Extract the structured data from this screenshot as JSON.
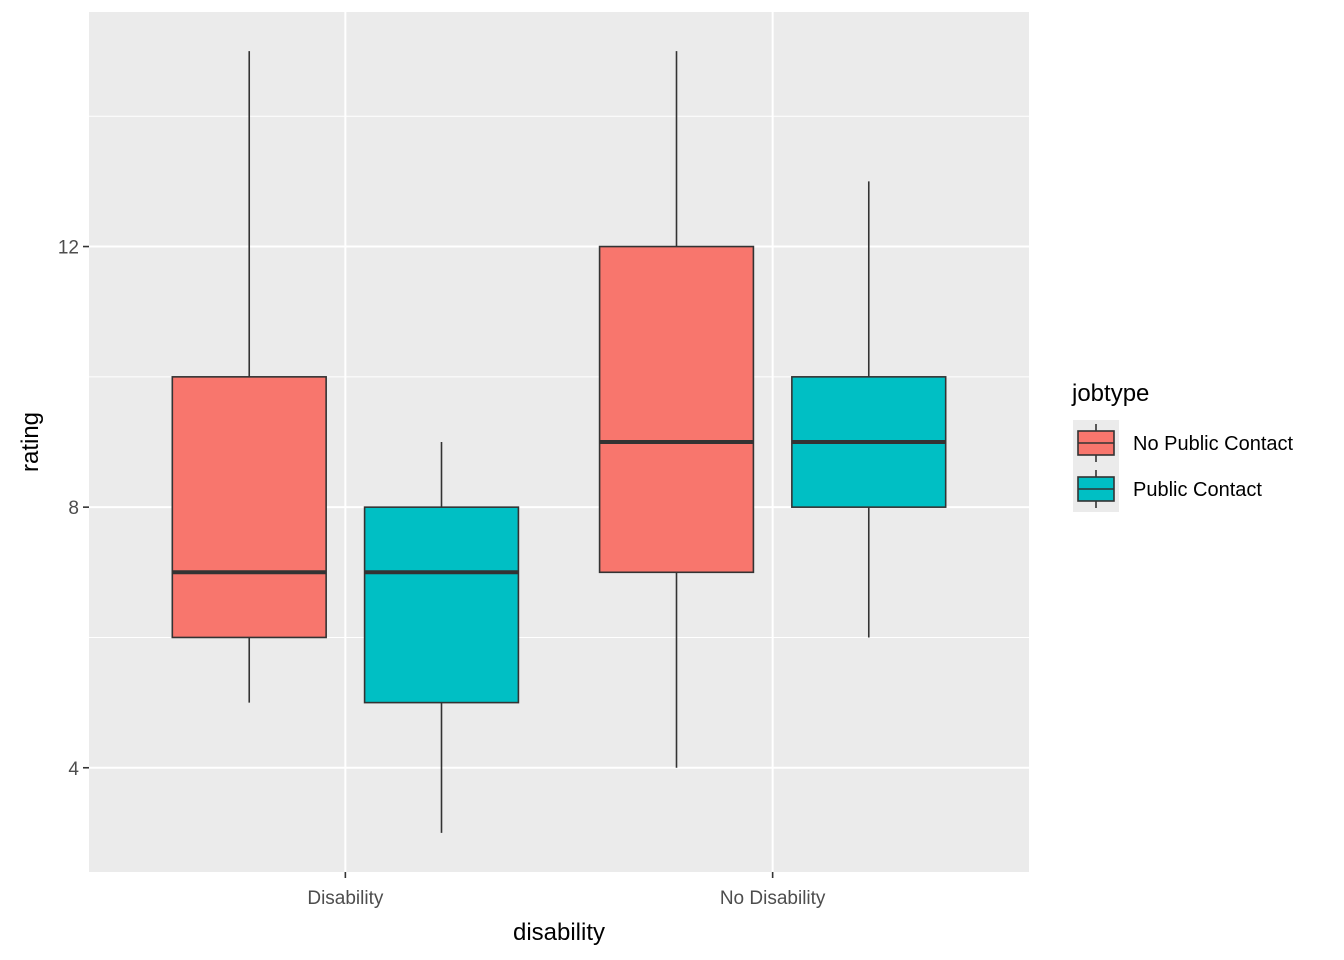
{
  "chart_data": {
    "type": "boxplot",
    "title": "",
    "xlabel": "disability",
    "ylabel": "rating",
    "categories": [
      "Disability",
      "No Disability"
    ],
    "ylim": [
      2.4,
      15.6
    ],
    "yticks_major": [
      4,
      8,
      12
    ],
    "yticks_minor": [
      6,
      10,
      14
    ],
    "grid": true,
    "legend": {
      "title": "jobtype",
      "position": "right",
      "entries": [
        "No Public Contact",
        "Public Contact"
      ]
    },
    "series": [
      {
        "name": "No Public Contact",
        "color": "#F8766D",
        "boxes": [
          {
            "category": "Disability",
            "min": 5,
            "q1": 6,
            "median": 7,
            "q3": 10,
            "max": 15
          },
          {
            "category": "No Disability",
            "min": 4,
            "q1": 7,
            "median": 9,
            "q3": 12,
            "max": 15
          }
        ]
      },
      {
        "name": "Public Contact",
        "color": "#00BFC4",
        "boxes": [
          {
            "category": "Disability",
            "min": 3,
            "q1": 5,
            "median": 7,
            "q3": 8,
            "max": 9
          },
          {
            "category": "No Disability",
            "min": 6,
            "q1": 8,
            "median": 9,
            "q3": 10,
            "max": 13
          }
        ]
      }
    ]
  }
}
